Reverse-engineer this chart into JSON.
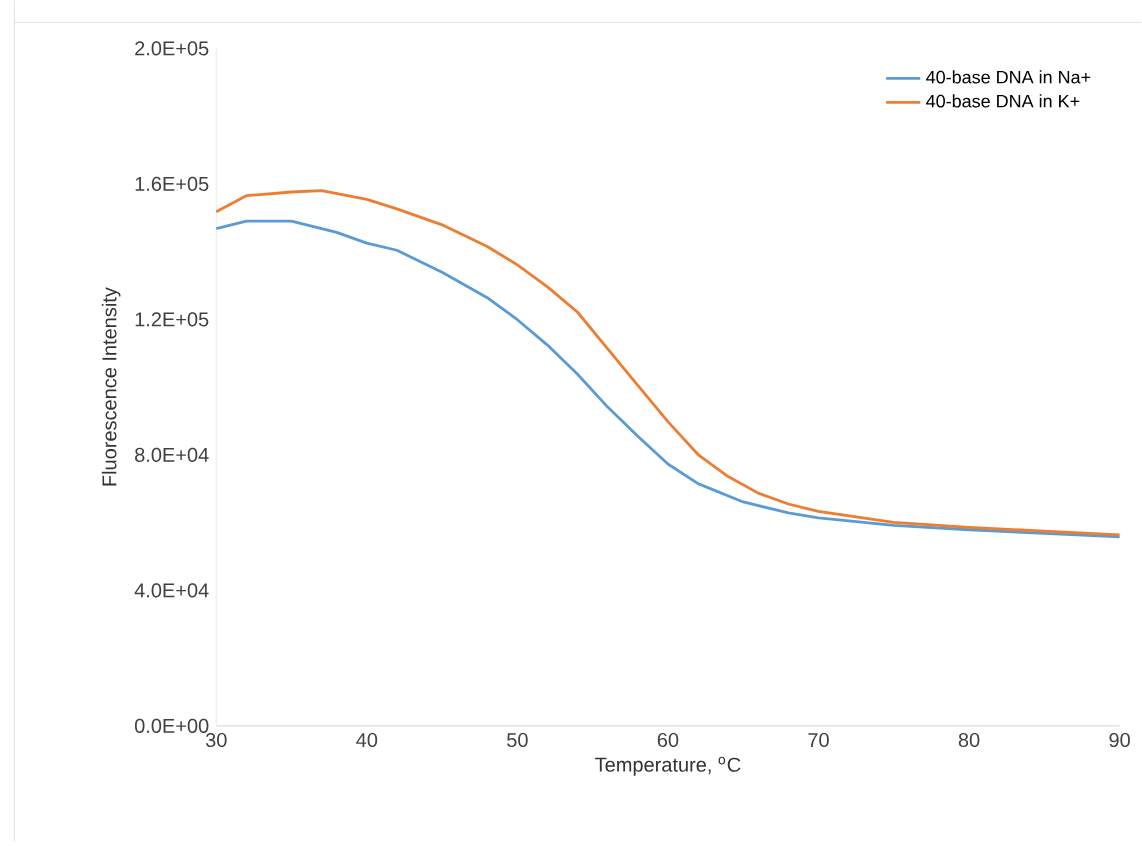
{
  "chart_data": {
    "type": "line",
    "xlabel": "Temperature, $^{o}$C",
    "ylabel": "Fluorescence Intensity",
    "xlim": [
      30,
      90
    ],
    "xticks": [
      30,
      40,
      50,
      60,
      70,
      80,
      90
    ],
    "ylim": [
      0,
      200000
    ],
    "yticks": [
      {
        "value": 0,
        "label": "0.0E+00"
      },
      {
        "value": 40000,
        "label": "4.0E+04"
      },
      {
        "value": 80000,
        "label": "8.0E+04"
      },
      {
        "value": 120000,
        "label": "1.2E+05"
      },
      {
        "value": 160000,
        "label": "1.6E+05"
      },
      {
        "value": 200000,
        "label": "2.0E+05"
      }
    ],
    "grid": false,
    "legend": "top right",
    "marker": "none",
    "line_style": "solid",
    "series": [
      {
        "name": "40-base DNA in Na+",
        "color": "#5b9bd5",
        "x": [
          30,
          32,
          35,
          38,
          40,
          42,
          45,
          48,
          50,
          52,
          54,
          56,
          58,
          60,
          62,
          65,
          68,
          70,
          75,
          80,
          85,
          90
        ],
        "values": [
          146800,
          149000,
          149000,
          145700,
          142500,
          140400,
          133900,
          126400,
          119900,
          112400,
          103800,
          94100,
          85500,
          77300,
          71500,
          66100,
          62900,
          61400,
          59200,
          57900,
          56800,
          55800
        ]
      },
      {
        "name": "40-base DNA in K+",
        "color": "#ed7d31",
        "x": [
          30,
          32,
          35,
          37,
          40,
          42,
          45,
          48,
          50,
          52,
          54,
          56,
          58,
          60,
          62,
          64,
          66,
          68,
          70,
          75,
          80,
          85,
          90
        ],
        "values": [
          151800,
          156500,
          157600,
          158000,
          155400,
          152600,
          147900,
          141500,
          136100,
          129600,
          122100,
          111300,
          100500,
          89800,
          80100,
          73600,
          68700,
          65500,
          63300,
          60100,
          58600,
          57500,
          56400
        ]
      }
    ]
  }
}
